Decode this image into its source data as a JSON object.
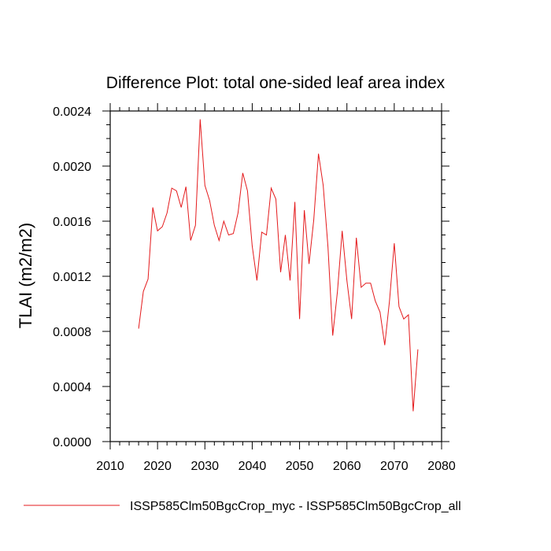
{
  "chart_data": {
    "type": "line",
    "title": "Difference Plot: total one-sided leaf area index",
    "xlabel": "",
    "ylabel": "TLAI  (m2/m2)",
    "xlim": [
      2010,
      2080
    ],
    "ylim": [
      0.0,
      0.0024
    ],
    "x_ticks": [
      "2010",
      "2020",
      "2030",
      "2040",
      "2050",
      "2060",
      "2070",
      "2080"
    ],
    "y_ticks": [
      "0.0000",
      "0.0004",
      "0.0008",
      "0.0012",
      "0.0016",
      "0.0020",
      "0.0024"
    ],
    "grid": false,
    "legend_position": "bottom",
    "series": [
      {
        "name": "ISSP585Clm50BgcCrop_myc - ISSP585Clm50BgcCrop_all",
        "color": "#e41a1c",
        "x": [
          2016,
          2017,
          2018,
          2019,
          2020,
          2021,
          2022,
          2023,
          2024,
          2025,
          2026,
          2027,
          2028,
          2029,
          2030,
          2031,
          2032,
          2033,
          2034,
          2035,
          2036,
          2037,
          2038,
          2039,
          2040,
          2041,
          2042,
          2043,
          2044,
          2045,
          2046,
          2047,
          2048,
          2049,
          2050,
          2051,
          2052,
          2053,
          2054,
          2055,
          2056,
          2057,
          2058,
          2059,
          2060,
          2061,
          2062,
          2063,
          2064,
          2065,
          2066,
          2067,
          2068,
          2069,
          2070,
          2071,
          2072,
          2073,
          2074,
          2075
        ],
        "values": [
          0.00082,
          0.00109,
          0.00118,
          0.0017,
          0.00153,
          0.00156,
          0.00166,
          0.00184,
          0.00182,
          0.0017,
          0.00185,
          0.00146,
          0.00157,
          0.00234,
          0.00186,
          0.00175,
          0.00157,
          0.00146,
          0.0016,
          0.0015,
          0.00151,
          0.00166,
          0.00195,
          0.00182,
          0.00142,
          0.00117,
          0.00152,
          0.0015,
          0.00184,
          0.00176,
          0.00123,
          0.0015,
          0.00117,
          0.00174,
          0.00089,
          0.00168,
          0.00129,
          0.00161,
          0.00209,
          0.00186,
          0.00141,
          0.00077,
          0.00109,
          0.00153,
          0.00117,
          0.00089,
          0.00148,
          0.00112,
          0.00115,
          0.00115,
          0.00102,
          0.00094,
          0.0007,
          0.00102,
          0.00144,
          0.00098,
          0.00089,
          0.00092,
          0.00022,
          0.00067
        ]
      }
    ]
  }
}
